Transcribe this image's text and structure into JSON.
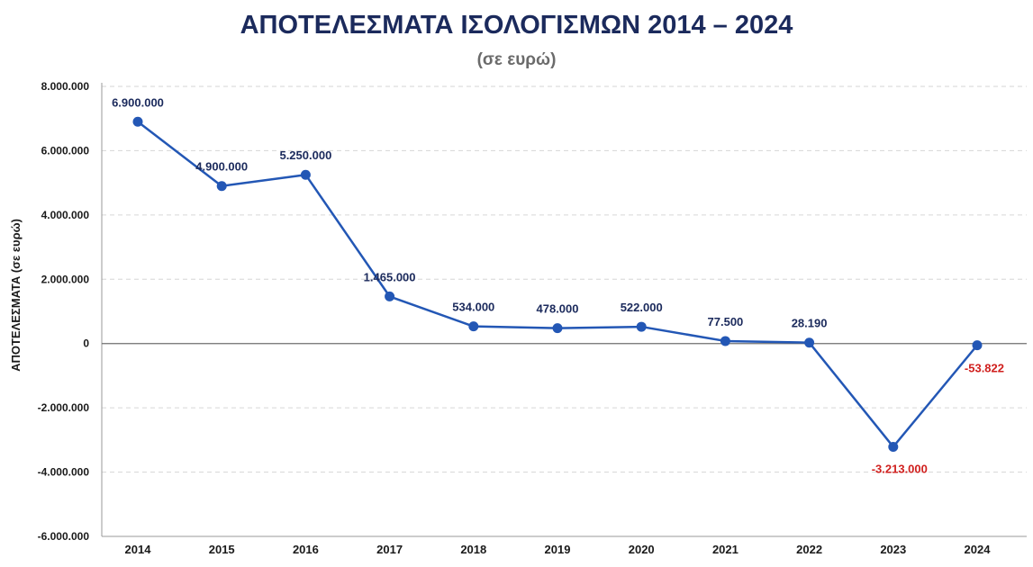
{
  "chart_data": {
    "type": "line",
    "title": "ΑΠΟΤΕΛΕΣΜΑΤΑ ΙΣΟΛΟΓΙΣΜΩΝ 2014 – 2024",
    "subtitle": "(σε ευρώ)",
    "xlabel": "",
    "ylabel": "ΑΠΟΤΕΛΕΣΜΑΤΑ  (σε ευρώ)",
    "ylim": [
      -6000000,
      8000000
    ],
    "yticks": [
      8000000,
      6000000,
      4000000,
      2000000,
      0,
      -2000000,
      -4000000,
      -6000000
    ],
    "ytick_labels": [
      "8.000.000",
      "6.000.000",
      "4.000.000",
      "2.000.000",
      "0",
      "-2.000.000",
      "-4.000.000",
      "-6.000.000"
    ],
    "grid": true,
    "categories": [
      "2014",
      "2015",
      "2016",
      "2017",
      "2018",
      "2019",
      "2020",
      "2021",
      "2022",
      "2023",
      "2024"
    ],
    "values": [
      6900000,
      4900000,
      5250000,
      1465000,
      534000,
      478000,
      522000,
      77500,
      28190,
      -3213000,
      -53822
    ],
    "data_labels": [
      "6.900.000",
      "4.900.000",
      "5.250.000",
      "1.465.000",
      "534.000",
      "478.000",
      "522.000",
      "77.500",
      "28.190",
      "-3.213.000",
      "-53.822"
    ],
    "colors": {
      "line": "#2357b5",
      "positive_label": "#1b2a5c",
      "negative_label": "#d0201e",
      "title": "#1b2a5c"
    }
  }
}
